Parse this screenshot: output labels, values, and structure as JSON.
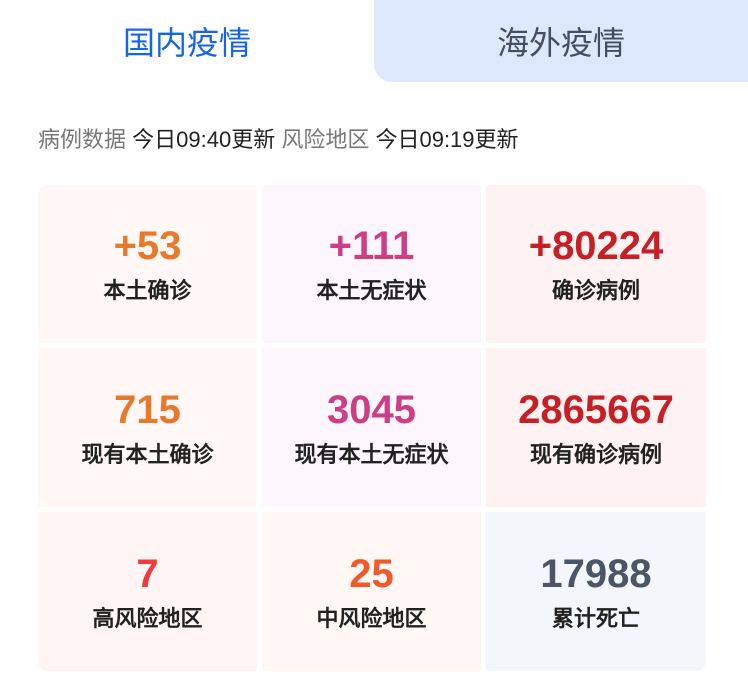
{
  "tabs": [
    {
      "label": "国内疫情",
      "active": true
    },
    {
      "label": "海外疫情",
      "active": false
    }
  ],
  "update": {
    "case_label": "病例数据",
    "case_time": "今日09:40更新",
    "risk_label": "风险地区",
    "risk_time": "今日09:19更新"
  },
  "stats": [
    {
      "value": "+53",
      "label": "本土确诊",
      "color": "#e8782a",
      "bg": "#fff8f6"
    },
    {
      "value": "+111",
      "label": "本土无症状",
      "color": "#cc3f86",
      "bg": "#fdf6fd"
    },
    {
      "value": "+80224",
      "label": "确诊病例",
      "color": "#c61f25",
      "bg": "#fff2f2"
    },
    {
      "value": "715",
      "label": "现有本土确诊",
      "color": "#e8782a",
      "bg": "#fff8f6"
    },
    {
      "value": "3045",
      "label": "现有本土无症状",
      "color": "#cc3f86",
      "bg": "#fdf6fd"
    },
    {
      "value": "2865667",
      "label": "现有确诊病例",
      "color": "#c61f25",
      "bg": "#fff2f2"
    },
    {
      "value": "7",
      "label": "高风险地区",
      "color": "#ee3b3b",
      "bg": "#fff5f5"
    },
    {
      "value": "25",
      "label": "中风险地区",
      "color": "#f0592a",
      "bg": "#fff8f5"
    },
    {
      "value": "17988",
      "label": "累计死亡",
      "color": "#4b5563",
      "bg": "#f3f6fa"
    }
  ]
}
